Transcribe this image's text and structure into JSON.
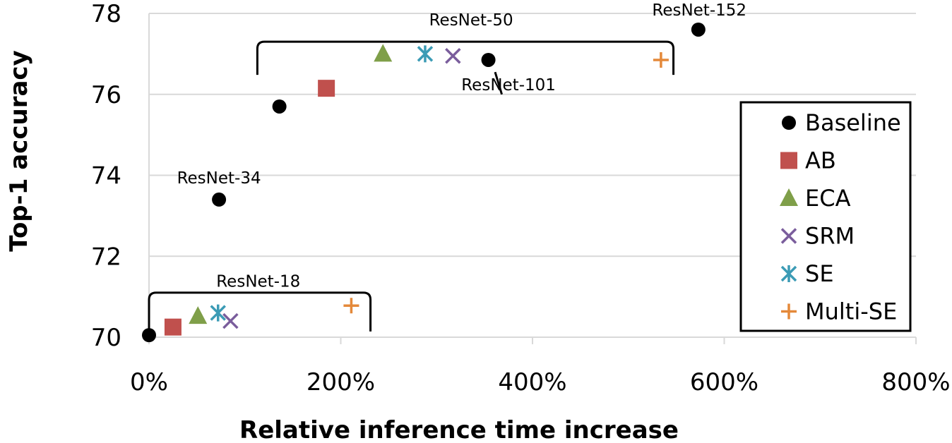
{
  "chart_data": {
    "type": "scatter",
    "title": "",
    "xlabel": "Relative inference time increase",
    "ylabel": "Top-1 accuracy",
    "xlim": [
      0,
      800
    ],
    "ylim": [
      70,
      78
    ],
    "x_unit": "%",
    "xticks": [
      "0%",
      "200%",
      "400%",
      "600%",
      "800%"
    ],
    "yticks": [
      "70",
      "72",
      "74",
      "76",
      "78"
    ],
    "grid": "horizontal",
    "legend_position": "right",
    "series": [
      {
        "name": "Baseline",
        "marker": "circle",
        "color": "#000000",
        "points": [
          [
            0,
            70.05
          ],
          [
            73,
            73.4
          ],
          [
            136,
            75.7
          ],
          [
            354,
            76.85
          ],
          [
            573,
            77.6
          ]
        ]
      },
      {
        "name": "AB",
        "marker": "square",
        "color": "#c0504d",
        "points": [
          [
            25,
            70.25
          ],
          [
            185,
            76.15
          ]
        ]
      },
      {
        "name": "ECA",
        "marker": "triangle",
        "color": "#7f9f49",
        "points": [
          [
            51,
            70.52
          ],
          [
            244,
            77.0
          ]
        ]
      },
      {
        "name": "SRM",
        "marker": "x",
        "color": "#7a5d9c",
        "points": [
          [
            85,
            70.4
          ],
          [
            317,
            76.95
          ]
        ]
      },
      {
        "name": "SE",
        "marker": "asterisk",
        "color": "#3b9bb5",
        "points": [
          [
            72,
            70.6
          ],
          [
            288,
            77.0
          ]
        ]
      },
      {
        "name": "Multi-SE",
        "marker": "plus",
        "color": "#e4893a",
        "points": [
          [
            211,
            70.78
          ],
          [
            534,
            76.85
          ]
        ]
      }
    ],
    "annotations": [
      {
        "text": "ResNet-18"
      },
      {
        "text": "ResNet-34"
      },
      {
        "text": "ResNet-50"
      },
      {
        "text": "ResNet-101"
      },
      {
        "text": "ResNet-152"
      }
    ]
  }
}
